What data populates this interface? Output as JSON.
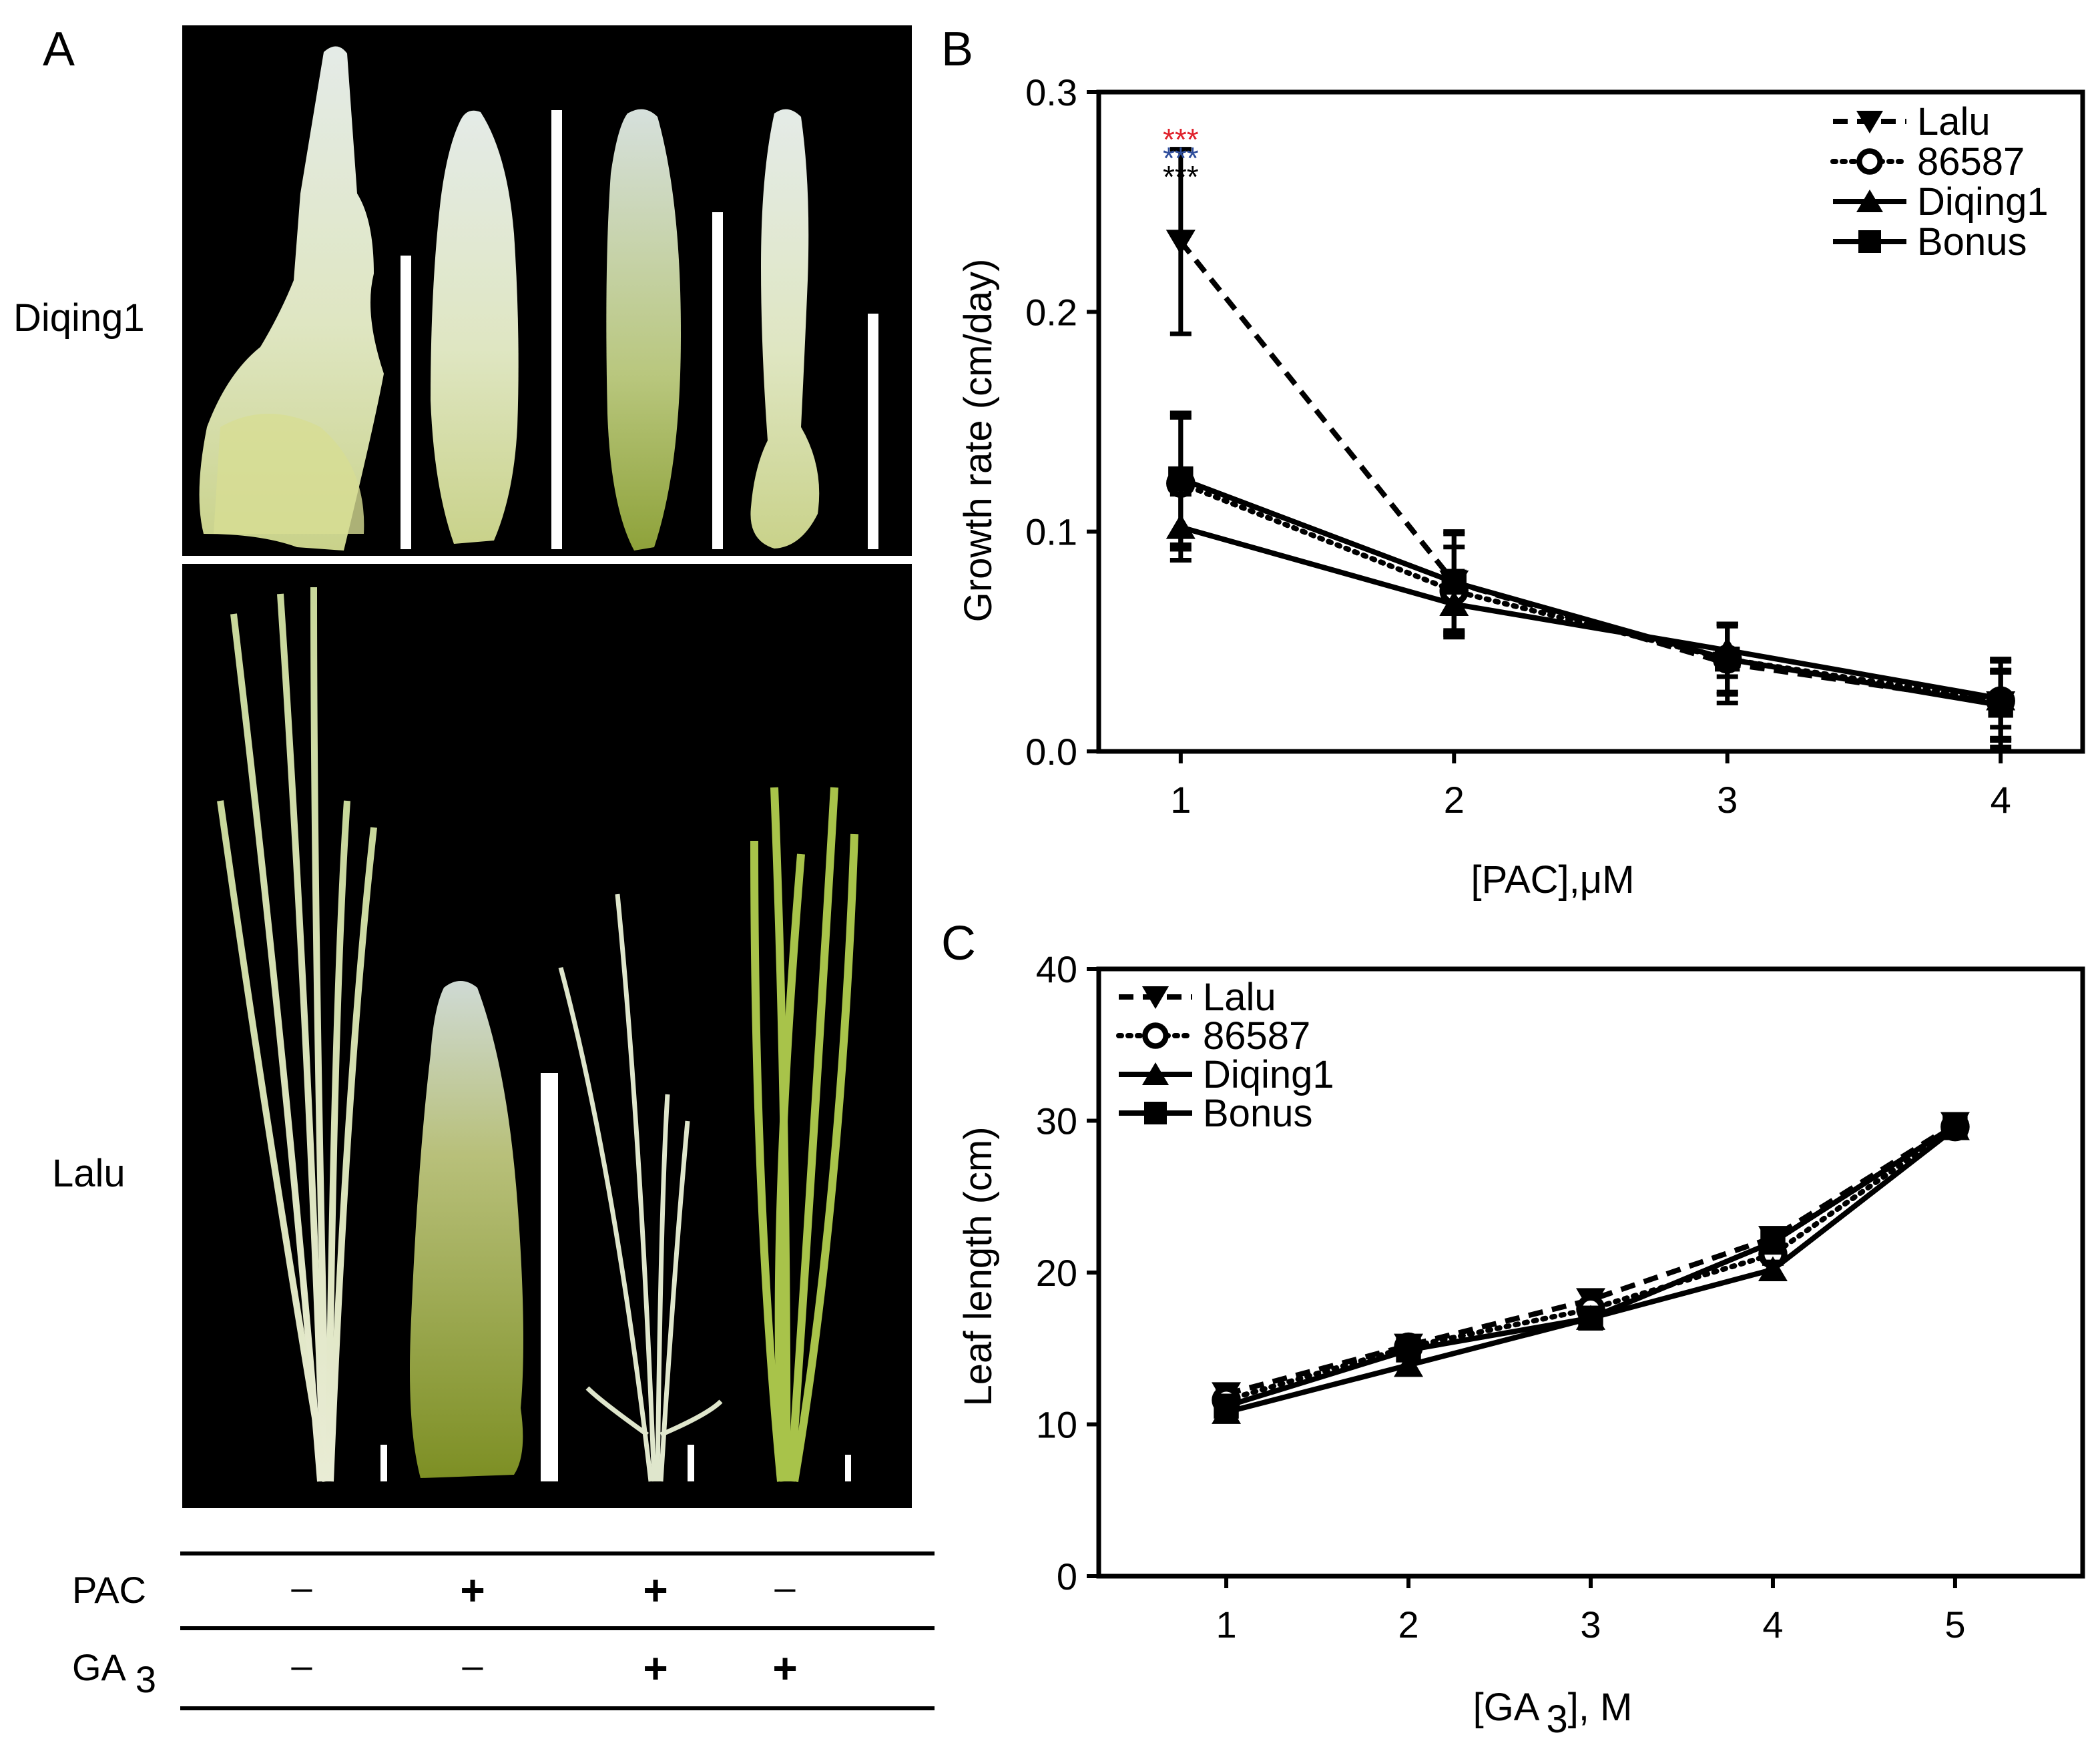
{
  "panel_a": {
    "panel_label": "A",
    "row_labels": [
      "Diqing1",
      "Lalu"
    ],
    "treatment_rows": [
      {
        "label": "PAC",
        "sub": "",
        "values": [
          "–",
          "+",
          "+",
          "–"
        ]
      },
      {
        "label": "GA",
        "sub": "3",
        "values": [
          "–",
          "–",
          "+",
          "+"
        ]
      }
    ]
  },
  "chart_data": [
    {
      "type": "line",
      "panel_label": "B",
      "title": "",
      "xlabel": "[PAC],μM",
      "ylabel": "Growth rate (cm/day)",
      "xlim": [
        0.7,
        4.3
      ],
      "ylim": [
        0,
        0.3
      ],
      "x_ticks": [
        1,
        2,
        3,
        4
      ],
      "y_ticks": [
        0.0,
        0.1,
        0.2,
        0.3
      ],
      "y_tick_labels": [
        "0.0",
        "0.1",
        "0.2",
        "0.3"
      ],
      "legend_position": "top-right",
      "significance": [
        {
          "x": 1,
          "text": "***",
          "color": "#e0232d"
        },
        {
          "x": 1,
          "text": "***",
          "color": "#2f4e9c"
        },
        {
          "x": 1,
          "text": "***",
          "color": "#000000"
        }
      ],
      "series": [
        {
          "name": "Lalu",
          "marker": "triangle-down",
          "line": "dashed",
          "x": [
            1,
            2,
            3,
            4
          ],
          "values": [
            0.232,
            0.077,
            0.04,
            0.022
          ],
          "errors": [
            0.042,
            0.023,
            0.018,
            0.02
          ]
        },
        {
          "name": "86587",
          "marker": "open-circle",
          "line": "dotted",
          "x": [
            1,
            2,
            3,
            4
          ],
          "values": [
            0.122,
            0.073,
            0.042,
            0.023
          ],
          "errors": [
            0.03,
            0.02,
            0.016,
            0.018
          ]
        },
        {
          "name": "Diqing1",
          "marker": "triangle-up",
          "line": "solid",
          "x": [
            1,
            2,
            3,
            4
          ],
          "values": [
            0.102,
            0.067,
            0.046,
            0.024
          ],
          "errors": [
            0.015,
            0.015,
            0.012,
            0.013
          ]
        },
        {
          "name": "Bonus",
          "marker": "square",
          "line": "solid",
          "x": [
            1,
            2,
            3,
            4
          ],
          "values": [
            0.124,
            0.077,
            0.042,
            0.021
          ],
          "errors": [
            0.03,
            0.022,
            0.015,
            0.015
          ]
        }
      ]
    },
    {
      "type": "line",
      "panel_label": "C",
      "title": "",
      "xlabel": "[GA",
      "xlabel_sub": "3",
      "xlabel_suffix": "], M",
      "ylabel": "Leaf length (cm)",
      "xlim": [
        0.3,
        5.7
      ],
      "ylim": [
        0,
        40
      ],
      "x_ticks": [
        1,
        2,
        3,
        4,
        5
      ],
      "y_ticks": [
        0,
        10,
        20,
        30,
        40
      ],
      "y_tick_labels": [
        "0",
        "10",
        "20",
        "30",
        "40"
      ],
      "legend_position": "top-left",
      "series": [
        {
          "name": "Lalu",
          "marker": "triangle-down",
          "line": "dashed",
          "x": [
            1,
            2,
            3,
            4,
            5
          ],
          "values": [
            12.0,
            15.2,
            18.2,
            22.3,
            29.8
          ],
          "errors": [
            0.6,
            0.5,
            0.5,
            0.6,
            0.6
          ]
        },
        {
          "name": "86587",
          "marker": "open-circle",
          "line": "dotted",
          "x": [
            1,
            2,
            3,
            4,
            5
          ],
          "values": [
            11.6,
            15.1,
            17.6,
            21.2,
            29.6
          ],
          "errors": [
            0.6,
            0.5,
            0.5,
            0.6,
            0.6
          ]
        },
        {
          "name": "Diqing1",
          "marker": "triangle-up",
          "line": "solid",
          "x": [
            1,
            2,
            3,
            4,
            5
          ],
          "values": [
            10.8,
            13.9,
            17.0,
            20.2,
            29.5
          ],
          "errors": [
            0.5,
            0.5,
            0.5,
            0.5,
            0.5
          ]
        },
        {
          "name": "Bonus",
          "marker": "square",
          "line": "solid",
          "x": [
            1,
            2,
            3,
            4,
            5
          ],
          "values": [
            11.2,
            14.9,
            17.0,
            22.0,
            29.7
          ],
          "errors": [
            0.5,
            0.5,
            0.5,
            0.5,
            0.5
          ]
        }
      ]
    }
  ]
}
